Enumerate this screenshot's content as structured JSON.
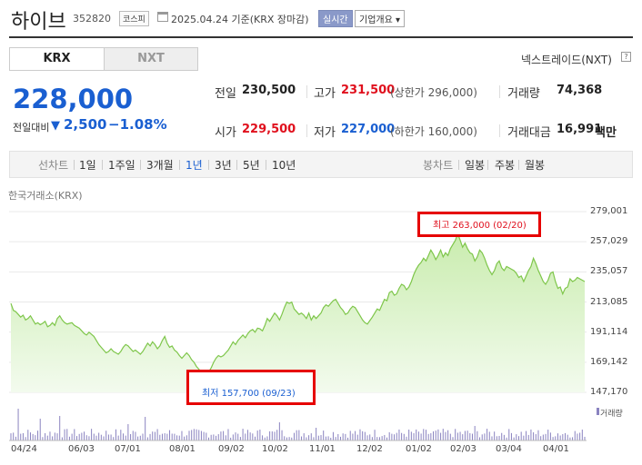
{
  "header": {
    "name": "하이브",
    "code": "352820",
    "market": "코스피",
    "date": "2025.04.24 기준(KRX 장마감)",
    "live": "실시간",
    "company": "기업개요 ▾"
  },
  "tabs": {
    "krx": "KRX",
    "nxt": "NXT"
  },
  "nextrade": "넥스트레이드(NXT)",
  "help": "?",
  "quote": {
    "price": "228,000",
    "change_label": "전일대비",
    "change_arrow": "▼",
    "change_value": "2,500",
    "change_pct": "−1.08%"
  },
  "stats": {
    "prev_label": "전일",
    "prev": "230,500",
    "high_label": "고가",
    "high": "231,500",
    "upper": "(상한가 296,000)",
    "volume_label": "거래량",
    "volume": "74,368",
    "open_label": "시가",
    "open": "229,500",
    "low_label": "저가",
    "low": "227,000",
    "lower": "(하한가 160,000)",
    "amount_label": "거래대금",
    "amount": "16,991",
    "amount_unit": "백만"
  },
  "periods": {
    "line_label": "선차트",
    "items": [
      "1일",
      "1주일",
      "3개월",
      "1년",
      "3년",
      "5년",
      "10년"
    ],
    "active": "1년",
    "candle_label": "봉차트",
    "candles": [
      "일봉",
      "주봉",
      "월봉"
    ]
  },
  "chart_meta": {
    "exchange": "한국거래소(KRX)",
    "volume_label": "거래량"
  },
  "chart_data": {
    "type": "area",
    "x_ticks": [
      "04/24",
      "06/03",
      "07/01",
      "08/01",
      "09/02",
      "10/02",
      "11/01",
      "12/02",
      "01/02",
      "02/03",
      "03/04",
      "04/01"
    ],
    "y_ticks": [
      "279,001",
      "257,029",
      "235,057",
      "213,085",
      "191,114",
      "169,142",
      "147,170"
    ],
    "ylim": [
      147170,
      279001
    ],
    "high": {
      "label": "최고 263,000 (02/20)",
      "value": 263000
    },
    "low": {
      "label": "최저 157,700 (09/23)",
      "value": 157700
    },
    "colors": {
      "line": "#7ec64a",
      "fill_top": "#c9ecae",
      "fill_bottom": "#f3fbee",
      "volume": "#8a83c0"
    },
    "values": [
      212000,
      207000,
      206000,
      204000,
      202000,
      203500,
      200000,
      201000,
      203000,
      200000,
      197000,
      198000,
      196500,
      197500,
      199000,
      195000,
      196000,
      198000,
      196000,
      201000,
      203000,
      200000,
      198000,
      197000,
      197500,
      198000,
      196000,
      195000,
      194000,
      192000,
      190000,
      189000,
      191000,
      189500,
      188000,
      185000,
      182000,
      180000,
      178000,
      176000,
      177000,
      179000,
      177000,
      176000,
      175000,
      177000,
      180000,
      182000,
      181000,
      179000,
      177000,
      178000,
      176500,
      175000,
      177000,
      180000,
      183000,
      181000,
      184000,
      182000,
      179000,
      181000,
      185000,
      188000,
      183000,
      180000,
      181000,
      178000,
      176500,
      174000,
      172000,
      174000,
      176000,
      174000,
      171000,
      169000,
      166000,
      164000,
      161000,
      157700,
      160000,
      162000,
      165000,
      169000,
      172000,
      174000,
      173000,
      174000,
      176000,
      178000,
      181000,
      184000,
      182000,
      185000,
      187000,
      189000,
      187000,
      190000,
      192000,
      193000,
      191000,
      194000,
      193500,
      192000,
      196000,
      201000,
      199000,
      202000,
      205000,
      203000,
      200000,
      204000,
      209000,
      213000,
      212000,
      213000,
      208000,
      206000,
      204000,
      205000,
      203500,
      201000,
      205000,
      200000,
      203000,
      201000,
      203000,
      205000,
      209000,
      211000,
      210000,
      212000,
      214000,
      215000,
      212000,
      209000,
      207000,
      204000,
      205000,
      208000,
      210000,
      209000,
      206000,
      203000,
      200000,
      198000,
      197000,
      199500,
      202000,
      205000,
      208000,
      207000,
      211000,
      215000,
      214000,
      220000,
      221000,
      218000,
      219000,
      223000,
      226000,
      225000,
      222000,
      224000,
      228000,
      233000,
      237000,
      240000,
      242000,
      245000,
      243000,
      247000,
      251000,
      248000,
      244000,
      247000,
      251000,
      246000,
      249000,
      247000,
      252000,
      255000,
      258000,
      263000,
      258000,
      253000,
      256000,
      252000,
      249000,
      248000,
      243000,
      246000,
      251000,
      249000,
      245000,
      240000,
      236000,
      233000,
      236000,
      241000,
      243000,
      238000,
      236000,
      239000,
      238000,
      237000,
      236000,
      234000,
      231000,
      232000,
      228000,
      232000,
      236000,
      239000,
      245000,
      241000,
      236000,
      232000,
      228000,
      226000,
      229000,
      234000,
      235000,
      228000,
      223000,
      224000,
      219000,
      223000,
      224000,
      230000,
      228000,
      229000,
      231000,
      230000,
      229000,
      228000
    ]
  }
}
